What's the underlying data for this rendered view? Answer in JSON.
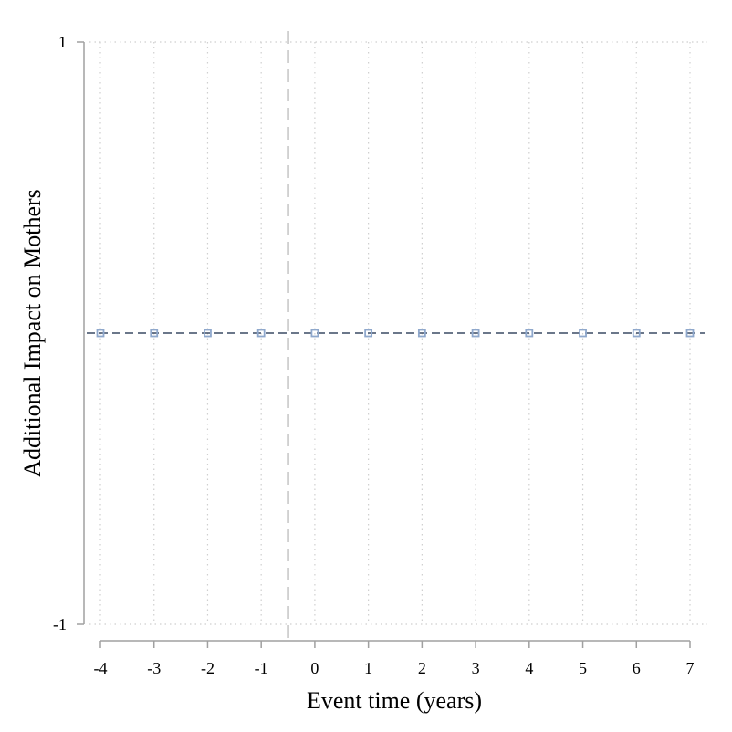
{
  "chart_data": {
    "type": "scatter",
    "title": "",
    "xlabel": "Event time (years)",
    "ylabel": "Additional Impact on Mothers",
    "xlim": [
      -4,
      7
    ],
    "ylim": [
      -1,
      1
    ],
    "x_ticks": [
      -4,
      -3,
      -2,
      -1,
      0,
      1,
      2,
      3,
      4,
      5,
      6,
      7
    ],
    "y_ticks": [
      1,
      -1
    ],
    "grid": true,
    "reference_lines": {
      "horizontal_y": 0,
      "vertical_x": -0.5
    },
    "series": [
      {
        "marker": "hollow-square",
        "x": [
          -4,
          -3,
          -2,
          -1,
          0,
          1,
          2,
          3,
          4,
          5,
          6,
          7
        ],
        "y": [
          0,
          0,
          0,
          0,
          0,
          0,
          0,
          0,
          0,
          0,
          0,
          0
        ]
      }
    ],
    "colors": {
      "marker": "#8fa8cc",
      "axis": "#a0a0a0",
      "grid": "#cfcfcf",
      "zero_line": "#3a4a63",
      "event_line": "#a8a8a8"
    }
  }
}
